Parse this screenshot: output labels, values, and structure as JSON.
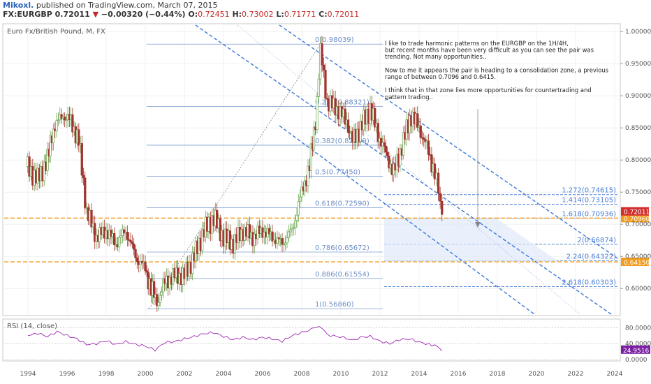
{
  "header": {
    "author": "Mikoxl.",
    "published": " published on TradingView.com, March 07, 2015",
    "symbol": "FX:EURGBP",
    "last": "0.72011",
    "change": "−0.00320 (−0.44%)",
    "open_label": "O:",
    "open": "0.72451",
    "high_label": "H:",
    "high": "0.73002",
    "low_label": "L:",
    "low": "0.71771",
    "close_label": "C:",
    "close": "0.72011"
  },
  "chart_data": {
    "type": "candlestick",
    "title": "Euro Fx/British Pound, M, FX",
    "x_ticks": [
      "1994",
      "1996",
      "1998",
      "2000",
      "2002",
      "2004",
      "2006",
      "2008",
      "2010",
      "2012",
      "2014",
      "2016",
      "2018",
      "2020",
      "2022",
      "2024"
    ],
    "ylim": [
      0.56,
      1.01
    ],
    "y_ticks": [
      "1.00000",
      "0.95000",
      "0.90000",
      "0.85000",
      "0.80000",
      "0.75000",
      "0.70000",
      "0.65000",
      "0.60000"
    ],
    "price_path": [
      [
        1993.9,
        0.79
      ],
      [
        1994.5,
        0.77
      ],
      [
        1995.0,
        0.8
      ],
      [
        1995.3,
        0.85
      ],
      [
        1995.8,
        0.87
      ],
      [
        1996.2,
        0.86
      ],
      [
        1996.6,
        0.83
      ],
      [
        1997.0,
        0.72
      ],
      [
        1997.5,
        0.68
      ],
      [
        1998.0,
        0.69
      ],
      [
        1998.5,
        0.67
      ],
      [
        1999.0,
        0.69
      ],
      [
        1999.5,
        0.65
      ],
      [
        2000.0,
        0.63
      ],
      [
        2000.3,
        0.6
      ],
      [
        2000.6,
        0.578
      ],
      [
        2001.0,
        0.61
      ],
      [
        2001.5,
        0.62
      ],
      [
        2002.0,
        0.62
      ],
      [
        2002.5,
        0.65
      ],
      [
        2003.0,
        0.69
      ],
      [
        2003.5,
        0.71
      ],
      [
        2004.0,
        0.68
      ],
      [
        2004.5,
        0.67
      ],
      [
        2005.0,
        0.69
      ],
      [
        2005.5,
        0.68
      ],
      [
        2006.0,
        0.69
      ],
      [
        2006.5,
        0.68
      ],
      [
        2007.0,
        0.67
      ],
      [
        2007.5,
        0.69
      ],
      [
        2008.0,
        0.75
      ],
      [
        2008.4,
        0.79
      ],
      [
        2008.7,
        0.86
      ],
      [
        2008.95,
        0.97
      ],
      [
        2009.3,
        0.89
      ],
      [
        2009.8,
        0.88
      ],
      [
        2010.3,
        0.86
      ],
      [
        2010.6,
        0.83
      ],
      [
        2011.0,
        0.85
      ],
      [
        2011.5,
        0.88
      ],
      [
        2011.9,
        0.84
      ],
      [
        2012.3,
        0.81
      ],
      [
        2012.7,
        0.78
      ],
      [
        2013.2,
        0.83
      ],
      [
        2013.6,
        0.87
      ],
      [
        2014.0,
        0.85
      ],
      [
        2014.4,
        0.82
      ],
      [
        2014.8,
        0.78
      ],
      [
        2015.17,
        0.72011
      ]
    ],
    "fib_retracement": {
      "levels": [
        {
          "label": "0(0.98039)",
          "value": 0.98039
        },
        {
          "label": "0.236(0.88321)",
          "value": 0.88321
        },
        {
          "label": "0.382(0.82309)",
          "value": 0.82309
        },
        {
          "label": "0.5(0.77450)",
          "value": 0.7745
        },
        {
          "label": "0.618(0.72590)",
          "value": 0.7259
        },
        {
          "label": "0.786(0.65672)",
          "value": 0.65672
        },
        {
          "label": "0.886(0.61554)",
          "value": 0.61554
        },
        {
          "label": "1(0.56860)",
          "value": 0.5686
        }
      ]
    },
    "fib_extension": {
      "levels": [
        {
          "label": "1.272(0.74615)",
          "value": 0.74615
        },
        {
          "label": "1.414(0.73105)",
          "value": 0.73105
        },
        {
          "label": "1.618(0.70936)",
          "value": 0.70936
        },
        {
          "label": "2(0.66874)",
          "value": 0.66874
        },
        {
          "label": "2.24(0.64322)",
          "value": 0.64322
        },
        {
          "label": "2.618(0.60303)",
          "value": 0.60303
        }
      ]
    },
    "support_zone": {
      "upper": 0.7096,
      "lower": 0.6415,
      "upper_label": "0.70960",
      "lower_label": "0.64150"
    },
    "last_price_label": "0.72011",
    "annotation": [
      "I like to trade harmonic patterns on the EURGBP on the 1H/4H,",
      "but recent months have been very difficult as you can see the pair was",
      "trending. Not many opportunities..",
      "",
      "Now to me it appears the pair is heading to a consolidation zone, a previous",
      "range of between 0.7096 and 0.6415.",
      "",
      "I think that in that zone lies more opportunities for countertrading and",
      "pattern trading.."
    ],
    "rsi": {
      "title": "RSI (14, close)",
      "ylim": [
        0,
        100
      ],
      "y_ticks": [
        "80.0000",
        "40.0000",
        "0.0000"
      ],
      "last_label": "24.9516",
      "values": [
        [
          1994.0,
          60
        ],
        [
          1994.5,
          66
        ],
        [
          1995.0,
          58
        ],
        [
          1995.5,
          70
        ],
        [
          1996.0,
          60
        ],
        [
          1996.5,
          52
        ],
        [
          1997.0,
          38
        ],
        [
          1997.5,
          40
        ],
        [
          1998.0,
          47
        ],
        [
          1998.5,
          38
        ],
        [
          1999.0,
          45
        ],
        [
          1999.5,
          38
        ],
        [
          2000.0,
          34
        ],
        [
          2000.5,
          24
        ],
        [
          2001.0,
          43
        ],
        [
          2001.5,
          45
        ],
        [
          2002.0,
          52
        ],
        [
          2002.5,
          58
        ],
        [
          2003.0,
          65
        ],
        [
          2003.5,
          68
        ],
        [
          2004.0,
          58
        ],
        [
          2004.5,
          50
        ],
        [
          2005.0,
          56
        ],
        [
          2005.5,
          50
        ],
        [
          2006.0,
          56
        ],
        [
          2006.5,
          52
        ],
        [
          2007.0,
          46
        ],
        [
          2007.5,
          60
        ],
        [
          2008.0,
          68
        ],
        [
          2008.5,
          76
        ],
        [
          2008.9,
          86
        ],
        [
          2009.3,
          62
        ],
        [
          2009.8,
          58
        ],
        [
          2010.3,
          54
        ],
        [
          2010.7,
          48
        ],
        [
          2011.0,
          56
        ],
        [
          2011.5,
          58
        ],
        [
          2012.0,
          46
        ],
        [
          2012.5,
          40
        ],
        [
          2013.0,
          50
        ],
        [
          2013.5,
          52
        ],
        [
          2014.0,
          44
        ],
        [
          2014.5,
          38
        ],
        [
          2014.8,
          35
        ],
        [
          2015.17,
          24.95
        ]
      ]
    }
  }
}
